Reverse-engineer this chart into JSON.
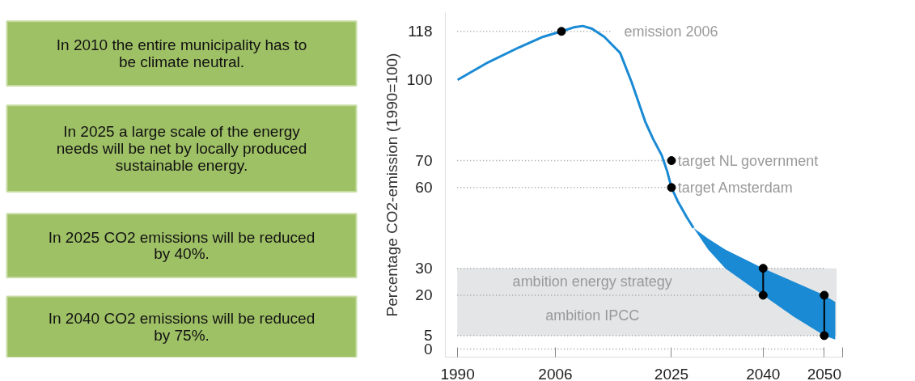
{
  "chart_data": [
    {
      "type": "other",
      "annotations": [
        "In 2010 the entire municipality has to\nbe climate neutral.",
        "In 2025 a large scale of the energy\nneeds will be net by locally produced\nsustainable energy.",
        "In 2025 CO2 emissions will be reduced\nby 40%.",
        "In 2040 CO2 emissions will be reduced\nby 75%."
      ]
    },
    {
      "type": "line",
      "ylabel": "Percentage CO2-emission (1990=100)",
      "xlim": [
        1988,
        2053
      ],
      "xticks": [
        {
          "value": 1988,
          "label": null
        },
        1990,
        2006,
        2025,
        2040,
        2050,
        {
          "value": 2053,
          "label": null
        }
      ],
      "ylim": [
        -3,
        125
      ],
      "yticks": [
        0,
        5,
        20,
        30,
        60,
        70,
        100,
        118
      ],
      "grid": false,
      "series": [
        {
          "type": "line",
          "color": "#1a8ad4",
          "x": [
            1990,
            1995,
            2000,
            2004,
            2007,
            2009,
            2010.5,
            2012,
            2014,
            2016.6,
            2018.5,
            2020.7,
            2022,
            2023.4,
            2024.3,
            2025,
            2026,
            2027.5,
            2028.6,
            2031,
            2033.8,
            2040,
            2045,
            2050,
            2051.8
          ],
          "values": [
            100,
            106.5,
            112,
            116,
            118,
            119.5,
            120,
            119,
            116,
            110,
            99,
            84.5,
            78,
            72,
            66,
            60,
            55,
            49,
            45,
            null,
            null,
            null,
            null,
            null,
            null
          ],
          "lower": [
            null,
            null,
            null,
            null,
            null,
            null,
            null,
            null,
            null,
            null,
            null,
            null,
            null,
            null,
            null,
            null,
            null,
            null,
            45,
            37,
            30,
            20,
            12,
            5,
            3.5
          ],
          "upper": [
            null,
            null,
            null,
            null,
            null,
            null,
            null,
            null,
            null,
            null,
            null,
            null,
            null,
            null,
            null,
            null,
            null,
            null,
            45,
            41,
            37,
            30,
            25,
            20,
            17.5
          ]
        },
        {
          "type": "line",
          "color": "#000000",
          "x": [
            2040,
            2040
          ],
          "values": [
            20,
            30
          ]
        },
        {
          "type": "line",
          "color": "#000000",
          "x": [
            2050,
            2050
          ],
          "values": [
            5,
            20
          ]
        },
        {
          "type": "scatter",
          "color": "#000000",
          "marker": "circle",
          "x": [
            2007,
            2025,
            2025,
            2040,
            2040,
            2050,
            2050
          ],
          "values": [
            118,
            70,
            60,
            30,
            20,
            20,
            5
          ]
        }
      ],
      "ref_lines": [
        {
          "axis": "y",
          "value": 118,
          "label": "emission 2006",
          "color": "#999999",
          "line_style": "dotted"
        },
        {
          "axis": "y",
          "value": 70,
          "label": "target NL government",
          "color": "#999999",
          "line_style": "dotted"
        },
        {
          "axis": "y",
          "value": 60,
          "label": "target Amsterdam",
          "color": "#999999",
          "line_style": "dotted"
        },
        {
          "axis": "y",
          "value": 30,
          "color": "#999999",
          "line_style": "dotted"
        },
        {
          "axis": "y",
          "value": 20,
          "color": "#999999",
          "line_style": "dotted"
        },
        {
          "axis": "y",
          "value": 5,
          "color": "#999999",
          "line_style": "dotted"
        },
        {
          "axis": "y",
          "value": 0,
          "color": "#999999",
          "line_style": "dotted"
        }
      ],
      "bands": [
        {
          "axis": "y",
          "from": 20,
          "to": 30,
          "label": "ambition energy strategy",
          "color": "#e3e5e6"
        },
        {
          "axis": "y",
          "from": 5,
          "to": 20,
          "label": "ambition IPCC",
          "color": "#e3e5e6"
        }
      ]
    }
  ]
}
